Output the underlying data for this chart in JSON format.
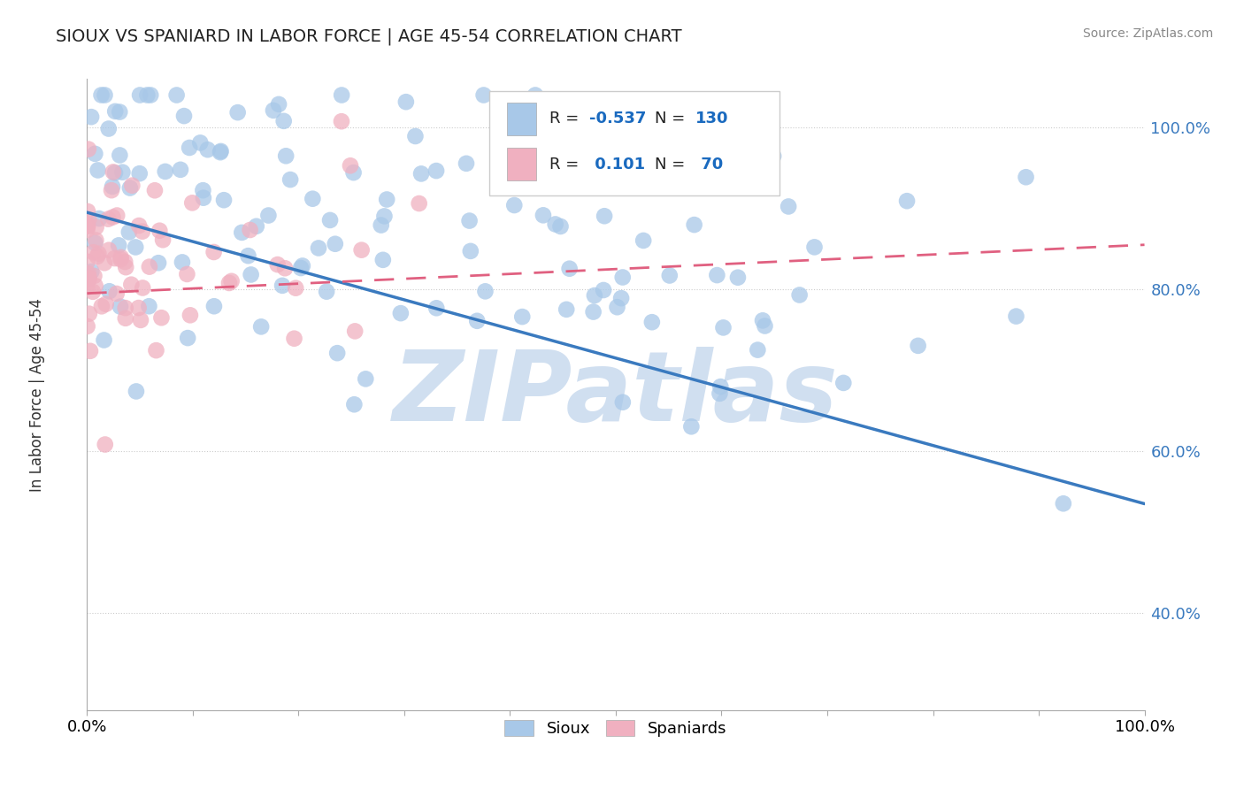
{
  "title": "SIOUX VS SPANIARD IN LABOR FORCE | AGE 45-54 CORRELATION CHART",
  "source": "Source: ZipAtlas.com",
  "ylabel": "In Labor Force | Age 45-54",
  "legend_label1": "Sioux",
  "legend_label2": "Spaniards",
  "R1": -0.537,
  "N1": 130,
  "R2": 0.101,
  "N2": 70,
  "blue_color": "#A8C8E8",
  "pink_color": "#F0B0C0",
  "blue_line_color": "#3A7ABF",
  "pink_line_color": "#E06080",
  "watermark": "ZIPatlas",
  "watermark_color": "#D0DFF0",
  "xlim": [
    0.0,
    1.0
  ],
  "ylim": [
    0.28,
    1.06
  ],
  "blue_trend_start": 0.895,
  "blue_trend_end": 0.535,
  "pink_trend_start": 0.795,
  "pink_trend_end": 0.855,
  "ytick_positions": [
    0.4,
    0.6,
    0.8,
    1.0
  ],
  "ytick_labels": [
    "40.0%",
    "60.0%",
    "80.0%",
    "100.0%"
  ],
  "seed_blue": 12,
  "seed_pink": 7
}
